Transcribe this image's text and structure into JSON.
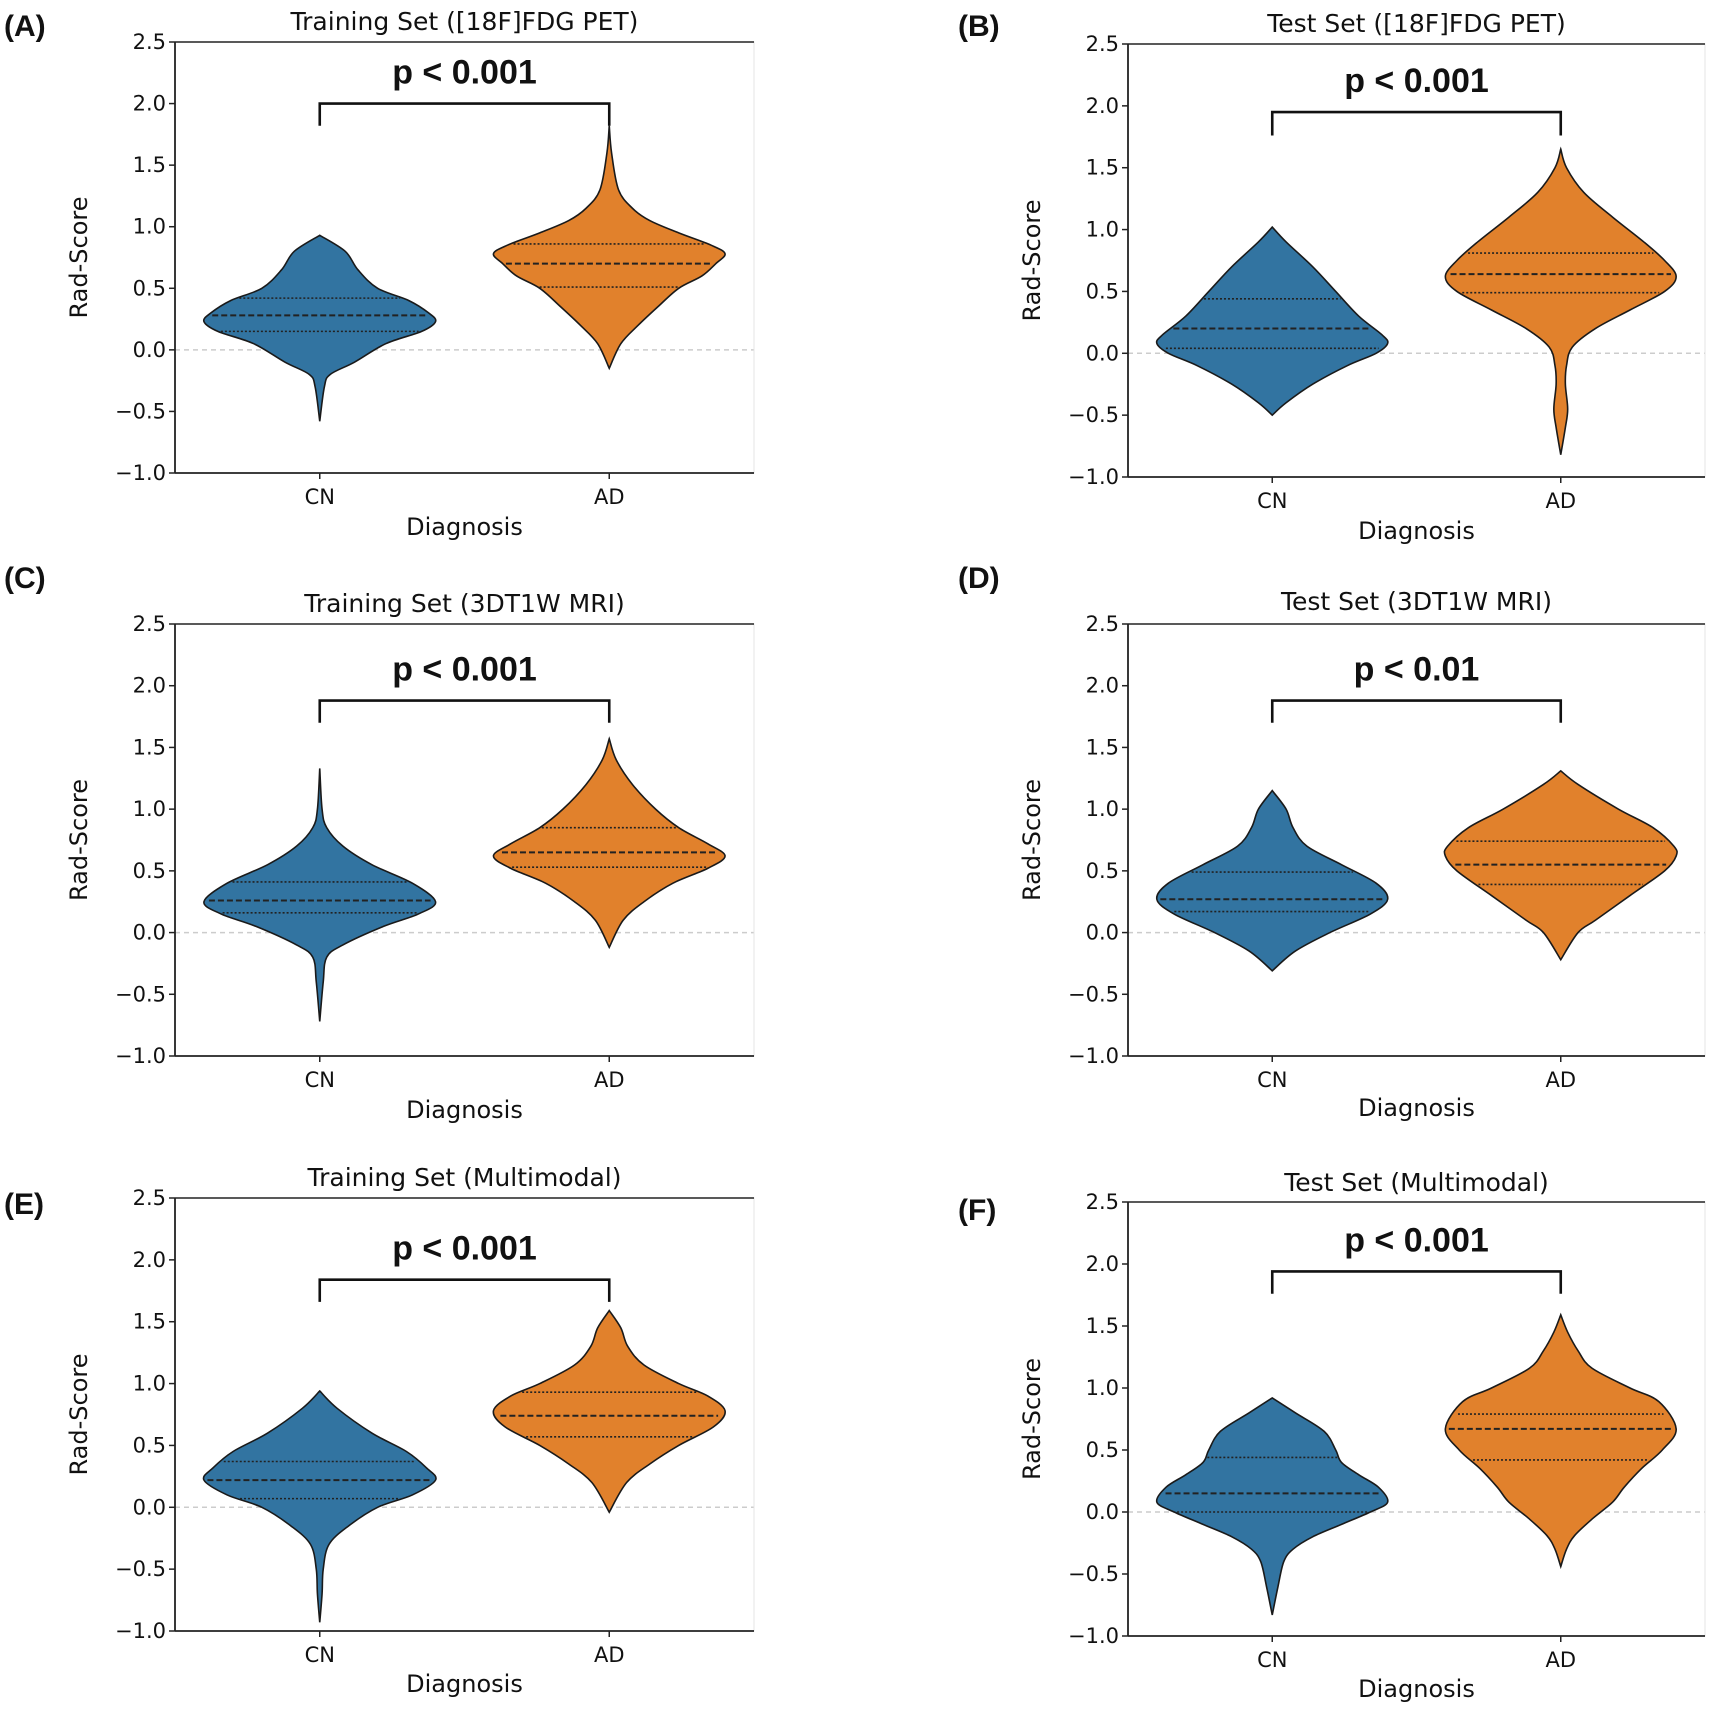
{
  "chart_data": {
    "type": "violin",
    "colors": {
      "CN": "#3274a1",
      "AD": "#e1812c",
      "outline": "#1a1a1a",
      "zero_line": "#cccccc"
    },
    "shared": {
      "xlabel": "Diagnosis",
      "ylabel": "Rad-Score",
      "categories": [
        "CN",
        "AD"
      ],
      "ylim": [
        -1.0,
        2.5
      ],
      "yticks": [
        -1.0,
        -0.5,
        0.0,
        0.5,
        1.0,
        1.5,
        2.0,
        2.5
      ],
      "ytick_labels": [
        "−1.0",
        "−0.5",
        "0.0",
        "0.5",
        "1.0",
        "1.5",
        "2.0",
        "2.5"
      ],
      "reference_line": 0.0
    },
    "panels": [
      {
        "label": "(A)",
        "title": "Training Set ([18F]FDG PET)",
        "pvalue": "p < 0.001",
        "bracket": {
          "y": 2.0,
          "leg_end": 1.82
        },
        "violins": [
          {
            "category": "CN",
            "min": -0.58,
            "max": 0.93,
            "quartiles": [
              0.15,
              0.28,
              0.42
            ],
            "density": [
              [
                0.93,
                0
              ],
              [
                0.8,
                0.22
              ],
              [
                0.65,
                0.33
              ],
              [
                0.5,
                0.5
              ],
              [
                0.4,
                0.77
              ],
              [
                0.3,
                0.94
              ],
              [
                0.23,
                1
              ],
              [
                0.15,
                0.88
              ],
              [
                0.05,
                0.57
              ],
              [
                -0.1,
                0.3
              ],
              [
                -0.2,
                0.09
              ],
              [
                -0.3,
                0.04
              ],
              [
                -0.58,
                0
              ]
            ]
          },
          {
            "category": "AD",
            "min": -0.15,
            "max": 1.82,
            "quartiles": [
              0.51,
              0.7,
              0.86
            ],
            "density": [
              [
                1.82,
                0
              ],
              [
                1.6,
                0.02
              ],
              [
                1.3,
                0.08
              ],
              [
                1.15,
                0.2
              ],
              [
                1.05,
                0.35
              ],
              [
                0.95,
                0.6
              ],
              [
                0.85,
                0.88
              ],
              [
                0.78,
                1
              ],
              [
                0.7,
                0.92
              ],
              [
                0.6,
                0.8
              ],
              [
                0.5,
                0.6
              ],
              [
                0.35,
                0.42
              ],
              [
                0.2,
                0.25
              ],
              [
                0.05,
                0.1
              ],
              [
                -0.15,
                0
              ]
            ]
          }
        ]
      },
      {
        "label": "(B)",
        "title": "Test Set ([18F]FDG PET)",
        "pvalue": "p < 0.001",
        "bracket": {
          "y": 1.95,
          "leg_end": 1.76
        },
        "violins": [
          {
            "category": "CN",
            "min": -0.5,
            "max": 1.02,
            "quartiles": [
              0.04,
              0.2,
              0.44
            ],
            "density": [
              [
                1.02,
                0
              ],
              [
                0.9,
                0.12
              ],
              [
                0.7,
                0.35
              ],
              [
                0.5,
                0.55
              ],
              [
                0.3,
                0.75
              ],
              [
                0.15,
                0.95
              ],
              [
                0.08,
                1
              ],
              [
                0,
                0.9
              ],
              [
                -0.1,
                0.65
              ],
              [
                -0.25,
                0.35
              ],
              [
                -0.4,
                0.12
              ],
              [
                -0.5,
                0
              ]
            ]
          },
          {
            "category": "AD",
            "min": -0.82,
            "max": 1.65,
            "quartiles": [
              0.49,
              0.64,
              0.81
            ],
            "density": [
              [
                1.65,
                0
              ],
              [
                1.5,
                0.05
              ],
              [
                1.3,
                0.2
              ],
              [
                1.1,
                0.45
              ],
              [
                0.9,
                0.72
              ],
              [
                0.75,
                0.9
              ],
              [
                0.62,
                1
              ],
              [
                0.5,
                0.9
              ],
              [
                0.35,
                0.6
              ],
              [
                0.2,
                0.3
              ],
              [
                0.05,
                0.1
              ],
              [
                -0.1,
                0.05
              ],
              [
                -0.25,
                0.04
              ],
              [
                -0.45,
                0.06
              ],
              [
                -0.6,
                0.04
              ],
              [
                -0.82,
                0
              ]
            ]
          }
        ]
      },
      {
        "label": "(C)",
        "title": "Training Set (3DT1W MRI)",
        "pvalue": "p < 0.001",
        "bracket": {
          "y": 1.88,
          "leg_end": 1.7
        },
        "violins": [
          {
            "category": "CN",
            "min": -0.72,
            "max": 1.33,
            "quartiles": [
              0.16,
              0.26,
              0.41
            ],
            "density": [
              [
                1.33,
                0
              ],
              [
                1.0,
                0.02
              ],
              [
                0.85,
                0.06
              ],
              [
                0.7,
                0.2
              ],
              [
                0.55,
                0.45
              ],
              [
                0.4,
                0.8
              ],
              [
                0.25,
                1
              ],
              [
                0.15,
                0.85
              ],
              [
                0.05,
                0.55
              ],
              [
                -0.1,
                0.2
              ],
              [
                -0.2,
                0.06
              ],
              [
                -0.4,
                0.03
              ],
              [
                -0.72,
                0
              ]
            ]
          },
          {
            "category": "AD",
            "min": -0.12,
            "max": 1.57,
            "quartiles": [
              0.53,
              0.65,
              0.85
            ],
            "density": [
              [
                1.57,
                0
              ],
              [
                1.4,
                0.06
              ],
              [
                1.2,
                0.2
              ],
              [
                1.0,
                0.4
              ],
              [
                0.85,
                0.6
              ],
              [
                0.72,
                0.85
              ],
              [
                0.62,
                1
              ],
              [
                0.52,
                0.85
              ],
              [
                0.4,
                0.55
              ],
              [
                0.25,
                0.3
              ],
              [
                0.1,
                0.12
              ],
              [
                -0.12,
                0
              ]
            ]
          }
        ]
      },
      {
        "label": "(D)",
        "title": "Test Set (3DT1W MRI)",
        "pvalue": "p < 0.01",
        "bracket": {
          "y": 1.88,
          "leg_end": 1.7
        },
        "violins": [
          {
            "category": "CN",
            "min": -0.31,
            "max": 1.15,
            "quartiles": [
              0.17,
              0.27,
              0.49
            ],
            "density": [
              [
                1.15,
                0
              ],
              [
                1.0,
                0.12
              ],
              [
                0.85,
                0.18
              ],
              [
                0.7,
                0.3
              ],
              [
                0.55,
                0.6
              ],
              [
                0.4,
                0.9
              ],
              [
                0.27,
                1
              ],
              [
                0.15,
                0.85
              ],
              [
                0.0,
                0.5
              ],
              [
                -0.15,
                0.2
              ],
              [
                -0.31,
                0
              ]
            ]
          },
          {
            "category": "AD",
            "min": -0.22,
            "max": 1.31,
            "quartiles": [
              0.39,
              0.55,
              0.74
            ],
            "density": [
              [
                1.31,
                0
              ],
              [
                1.2,
                0.15
              ],
              [
                1.0,
                0.5
              ],
              [
                0.85,
                0.8
              ],
              [
                0.7,
                0.98
              ],
              [
                0.62,
                1
              ],
              [
                0.5,
                0.9
              ],
              [
                0.3,
                0.6
              ],
              [
                0.1,
                0.3
              ],
              [
                0,
                0.15
              ],
              [
                -0.22,
                0
              ]
            ]
          }
        ]
      },
      {
        "label": "(E)",
        "title": "Training Set (Multimodal)",
        "pvalue": "p < 0.001",
        "bracket": {
          "y": 1.84,
          "leg_end": 1.66
        },
        "violins": [
          {
            "category": "CN",
            "min": -0.93,
            "max": 0.94,
            "quartiles": [
              0.07,
              0.22,
              0.37
            ],
            "density": [
              [
                0.94,
                0
              ],
              [
                0.8,
                0.15
              ],
              [
                0.6,
                0.45
              ],
              [
                0.45,
                0.75
              ],
              [
                0.32,
                0.92
              ],
              [
                0.22,
                1
              ],
              [
                0.1,
                0.8
              ],
              [
                0,
                0.5
              ],
              [
                -0.15,
                0.25
              ],
              [
                -0.3,
                0.08
              ],
              [
                -0.5,
                0.03
              ],
              [
                -0.7,
                0.02
              ],
              [
                -0.93,
                0
              ]
            ]
          },
          {
            "category": "AD",
            "min": -0.04,
            "max": 1.59,
            "quartiles": [
              0.57,
              0.74,
              0.93
            ],
            "density": [
              [
                1.59,
                0
              ],
              [
                1.45,
                0.1
              ],
              [
                1.3,
                0.16
              ],
              [
                1.15,
                0.3
              ],
              [
                1.0,
                0.6
              ],
              [
                0.9,
                0.85
              ],
              [
                0.78,
                1
              ],
              [
                0.65,
                0.9
              ],
              [
                0.5,
                0.6
              ],
              [
                0.35,
                0.35
              ],
              [
                0.2,
                0.15
              ],
              [
                -0.04,
                0
              ]
            ]
          }
        ]
      },
      {
        "label": "(F)",
        "title": "Test Set (Multimodal)",
        "pvalue": "p < 0.001",
        "bracket": {
          "y": 1.94,
          "leg_end": 1.76
        },
        "violins": [
          {
            "category": "CN",
            "min": -0.83,
            "max": 0.92,
            "quartiles": [
              0.0,
              0.15,
              0.44
            ],
            "density": [
              [
                0.92,
                0
              ],
              [
                0.8,
                0.2
              ],
              [
                0.65,
                0.45
              ],
              [
                0.5,
                0.55
              ],
              [
                0.4,
                0.6
              ],
              [
                0.3,
                0.75
              ],
              [
                0.2,
                0.92
              ],
              [
                0.08,
                1
              ],
              [
                0,
                0.85
              ],
              [
                -0.1,
                0.6
              ],
              [
                -0.2,
                0.35
              ],
              [
                -0.3,
                0.18
              ],
              [
                -0.4,
                0.1
              ],
              [
                -0.6,
                0.05
              ],
              [
                -0.83,
                0
              ]
            ]
          },
          {
            "category": "AD",
            "min": -0.44,
            "max": 1.59,
            "quartiles": [
              0.42,
              0.67,
              0.79
            ],
            "density": [
              [
                1.59,
                0
              ],
              [
                1.45,
                0.06
              ],
              [
                1.3,
                0.15
              ],
              [
                1.16,
                0.27
              ],
              [
                1.0,
                0.6
              ],
              [
                0.89,
                0.85
              ],
              [
                0.67,
                1
              ],
              [
                0.5,
                0.88
              ],
              [
                0.35,
                0.7
              ],
              [
                0.2,
                0.55
              ],
              [
                0.08,
                0.45
              ],
              [
                -0.05,
                0.28
              ],
              [
                -0.19,
                0.12
              ],
              [
                -0.3,
                0.05
              ],
              [
                -0.44,
                0
              ]
            ]
          }
        ]
      }
    ]
  }
}
